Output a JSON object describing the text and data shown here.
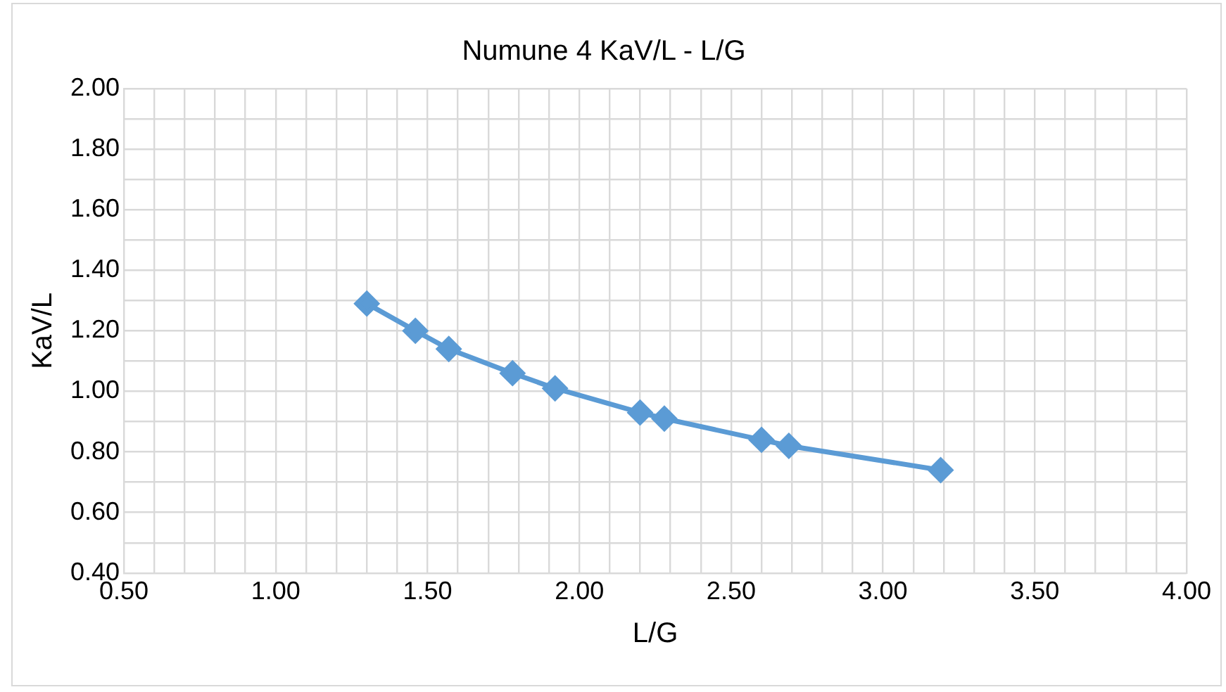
{
  "chart_data": {
    "type": "line",
    "title": "Numune 4 KaV/L - L/G",
    "xlabel": "L/G",
    "ylabel": "KaV/L",
    "x": [
      1.3,
      1.46,
      1.57,
      1.78,
      1.92,
      2.2,
      2.28,
      2.6,
      2.69,
      3.19
    ],
    "series": [
      {
        "color": "#5b9bd5",
        "values": [
          1.29,
          1.2,
          1.14,
          1.06,
          1.01,
          0.93,
          0.91,
          0.84,
          0.82,
          0.74
        ]
      }
    ],
    "xlim": [
      0.5,
      4.0
    ],
    "xticks": [
      {
        "value": 0.5,
        "label": "0.50"
      },
      {
        "value": 0.6,
        "label": null
      },
      {
        "value": 0.7,
        "label": null
      },
      {
        "value": 0.8,
        "label": null
      },
      {
        "value": 0.9,
        "label": null
      },
      {
        "value": 1.0,
        "label": "1.00"
      },
      {
        "value": 1.1,
        "label": null
      },
      {
        "value": 1.2,
        "label": null
      },
      {
        "value": 1.3,
        "label": null
      },
      {
        "value": 1.4,
        "label": null
      },
      {
        "value": 1.5,
        "label": "1.50"
      },
      {
        "value": 1.6,
        "label": null
      },
      {
        "value": 1.7,
        "label": null
      },
      {
        "value": 1.8,
        "label": null
      },
      {
        "value": 1.9,
        "label": null
      },
      {
        "value": 2.0,
        "label": "2.00"
      },
      {
        "value": 2.1,
        "label": null
      },
      {
        "value": 2.2,
        "label": null
      },
      {
        "value": 2.3,
        "label": null
      },
      {
        "value": 2.4,
        "label": null
      },
      {
        "value": 2.5,
        "label": "2.50"
      },
      {
        "value": 2.6,
        "label": null
      },
      {
        "value": 2.7,
        "label": null
      },
      {
        "value": 2.8,
        "label": null
      },
      {
        "value": 2.9,
        "label": null
      },
      {
        "value": 3.0,
        "label": "3.00"
      },
      {
        "value": 3.1,
        "label": null
      },
      {
        "value": 3.2,
        "label": null
      },
      {
        "value": 3.3,
        "label": null
      },
      {
        "value": 3.4,
        "label": null
      },
      {
        "value": 3.5,
        "label": "3.50"
      },
      {
        "value": 3.6,
        "label": null
      },
      {
        "value": 3.7,
        "label": null
      },
      {
        "value": 3.8,
        "label": null
      },
      {
        "value": 3.9,
        "label": null
      },
      {
        "value": 4.0,
        "label": "4.00"
      }
    ],
    "ylim": [
      0.4,
      2.0
    ],
    "yticks": [
      {
        "value": 0.4,
        "label": "0.40"
      },
      {
        "value": 0.5,
        "label": null
      },
      {
        "value": 0.6,
        "label": "0.60"
      },
      {
        "value": 0.7,
        "label": null
      },
      {
        "value": 0.8,
        "label": "0.80"
      },
      {
        "value": 0.9,
        "label": null
      },
      {
        "value": 1.0,
        "label": "1.00"
      },
      {
        "value": 1.1,
        "label": null
      },
      {
        "value": 1.2,
        "label": "1.20"
      },
      {
        "value": 1.3,
        "label": null
      },
      {
        "value": 1.4,
        "label": "1.40"
      },
      {
        "value": 1.5,
        "label": null
      },
      {
        "value": 1.6,
        "label": "1.60"
      },
      {
        "value": 1.7,
        "label": null
      },
      {
        "value": 1.8,
        "label": "1.80"
      },
      {
        "value": 1.9,
        "label": null
      },
      {
        "value": 2.0,
        "label": "2.00"
      }
    ],
    "grid": true,
    "marker": "diamond",
    "line_style": "solid",
    "legend": false
  }
}
